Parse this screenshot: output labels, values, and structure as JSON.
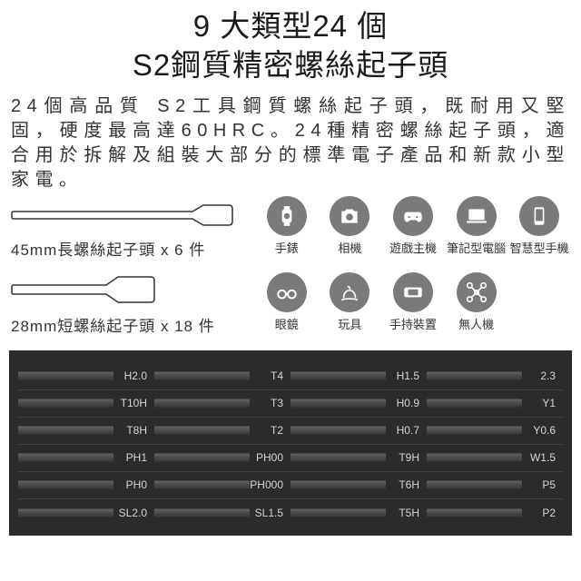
{
  "title_line1": "9 大類型24 個",
  "title_line2": "S2鋼質精密螺絲起子頭",
  "description": "24個高品質 S2工具鋼質螺絲起子頭，既耐用又堅固，硬度最高達60HRC。24種精密螺絲起子頭，適合用於拆解及組裝大部分的標準電子產品和新款小型家電。",
  "bit_long_label": "45mm長螺絲起子頭 x 6 件",
  "bit_short_label": "28mm短螺絲起子頭 x 18 件",
  "icons": [
    {
      "label": "手錶",
      "name": "watch"
    },
    {
      "label": "相機",
      "name": "camera"
    },
    {
      "label": "遊戲主機",
      "name": "game"
    },
    {
      "label": "筆記型電腦",
      "name": "laptop"
    },
    {
      "label": "智慧型手機",
      "name": "phone"
    },
    {
      "label": "眼鏡",
      "name": "glasses"
    },
    {
      "label": "玩具",
      "name": "toy"
    },
    {
      "label": "手持裝置",
      "name": "handheld"
    },
    {
      "label": "無人機",
      "name": "drone"
    }
  ],
  "bits": [
    [
      "H2.0",
      "T4",
      "H1.5",
      "2.3"
    ],
    [
      "T10H",
      "T3",
      "H0.9",
      "Y1"
    ],
    [
      "T8H",
      "T2",
      "H0.7",
      "Y0.6"
    ],
    [
      "PH1",
      "PH00",
      "T9H",
      "W1.5"
    ],
    [
      "PH0",
      "PH000",
      "T6H",
      "P5"
    ],
    [
      "SL2.0",
      "SL1.5",
      "T5H",
      "P2"
    ]
  ],
  "colors": {
    "icon_bg": "#7a7a7a",
    "panel_bg": "#2b2b2b",
    "bit_text": "#d6d6d6"
  }
}
